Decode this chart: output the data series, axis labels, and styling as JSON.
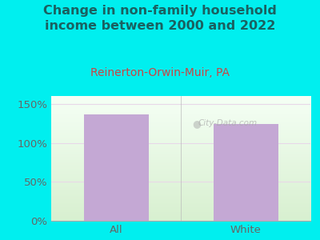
{
  "title": "Change in non-family household\nincome between 2000 and 2022",
  "subtitle": "Reinerton-Orwin-Muir, PA",
  "categories": [
    "All",
    "White"
  ],
  "values": [
    136,
    124
  ],
  "bar_color": "#c4a8d4",
  "background_outer": "#00efef",
  "background_plot_top": "#f5fff5",
  "background_plot_bottom": "#d8f0d0",
  "title_color": "#1a6060",
  "subtitle_color": "#cc4444",
  "tick_color": "#666666",
  "grid_color": "#e8d8e8",
  "ylim": [
    0,
    160
  ],
  "yticks": [
    0,
    50,
    100,
    150
  ],
  "watermark": "City-Data.com",
  "title_fontsize": 11.5,
  "subtitle_fontsize": 10,
  "tick_fontsize": 9.5
}
